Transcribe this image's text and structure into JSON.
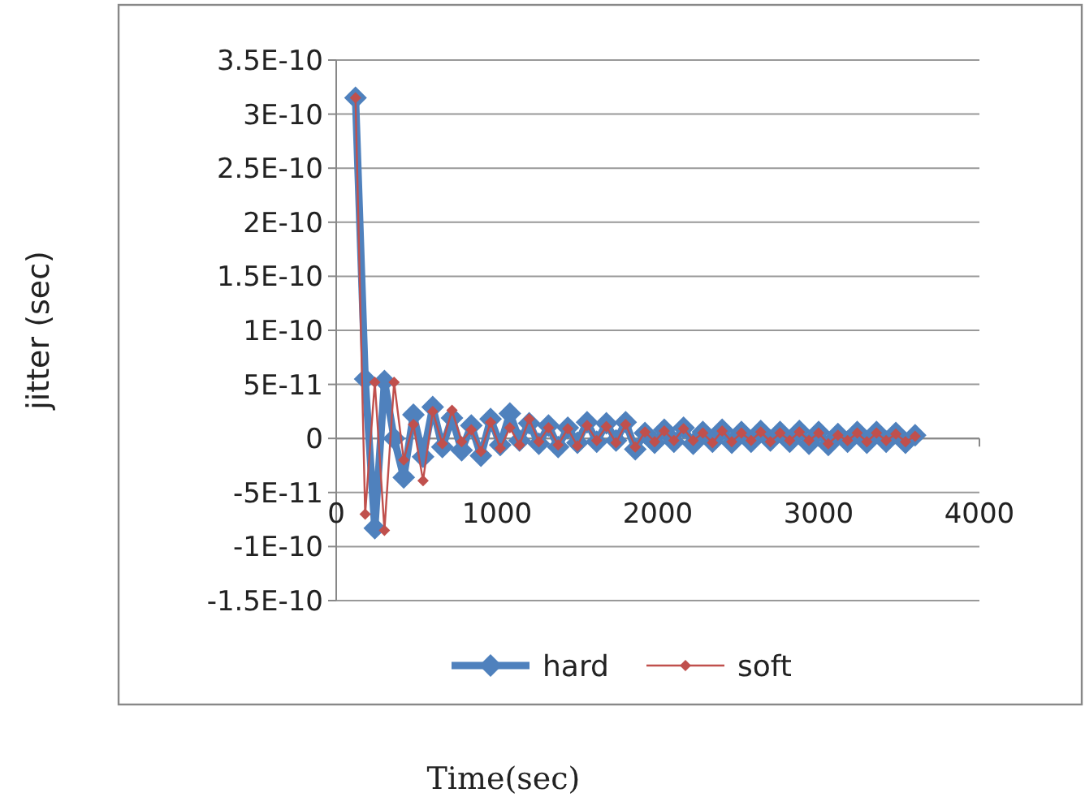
{
  "chart_data": {
    "type": "line",
    "xlabel": "Time(sec)",
    "ylabel": "jitter (sec)",
    "x": [
      120,
      180,
      240,
      300,
      360,
      420,
      480,
      540,
      600,
      660,
      720,
      780,
      840,
      900,
      960,
      1020,
      1080,
      1140,
      1200,
      1260,
      1320,
      1380,
      1440,
      1500,
      1560,
      1620,
      1680,
      1740,
      1800,
      1860,
      1920,
      1980,
      2040,
      2100,
      2160,
      2220,
      2280,
      2340,
      2400,
      2460,
      2520,
      2580,
      2640,
      2700,
      2760,
      2820,
      2880,
      2940,
      3000,
      3060,
      3120,
      3180,
      3240,
      3300,
      3360,
      3420,
      3480,
      3540,
      3600
    ],
    "series": [
      {
        "name": "hard",
        "color": "#4f81bd",
        "marker": "diamond",
        "values": [
          3.15e-10,
          5.5e-11,
          -8.3e-11,
          5.3e-11,
          0,
          -3.6e-11,
          2.2e-11,
          -1.7e-11,
          2.9e-11,
          -8e-12,
          1.9e-11,
          -1.1e-11,
          1.2e-11,
          -1.6e-11,
          1.8e-11,
          -6e-12,
          2.3e-11,
          -2e-12,
          1.4e-11,
          -5e-12,
          1.2e-11,
          -8e-12,
          1e-11,
          -4e-12,
          1.5e-11,
          -3e-12,
          1.4e-11,
          -2e-12,
          1.5e-11,
          -1e-11,
          5e-12,
          -4e-12,
          8e-12,
          -3e-12,
          1e-11,
          -5e-12,
          6e-12,
          -3e-12,
          8e-12,
          -4e-12,
          6e-12,
          -3e-12,
          7e-12,
          -2e-12,
          6e-12,
          -3e-12,
          7e-12,
          -5e-12,
          6e-12,
          -6e-12,
          4e-12,
          -3e-12,
          6e-12,
          -4e-12,
          6e-12,
          -3e-12,
          5e-12,
          -4e-12,
          3e-12
        ]
      },
      {
        "name": "soft",
        "color": "#c0504d",
        "marker": "diamond",
        "values": [
          3.15e-10,
          -7e-11,
          5.2e-11,
          -8.5e-11,
          5.2e-11,
          -2e-11,
          1.3e-11,
          -3.9e-11,
          2.5e-11,
          -5e-12,
          2.6e-11,
          -3e-12,
          8e-12,
          -1.2e-11,
          1.5e-11,
          -9e-12,
          1e-11,
          -6e-12,
          1.8e-11,
          -3e-12,
          1e-11,
          -6e-12,
          9e-12,
          -7e-12,
          1.2e-11,
          -2e-12,
          1.1e-11,
          -4e-12,
          1.3e-11,
          -8e-12,
          6e-12,
          -3e-12,
          7e-12,
          -2e-12,
          9e-12,
          -2e-12,
          5e-12,
          -4e-12,
          7e-12,
          -3e-12,
          5e-12,
          -2e-12,
          6e-12,
          -3e-12,
          5e-12,
          -2e-12,
          6e-12,
          -2e-12,
          5e-12,
          -5e-12,
          3e-12,
          -2e-12,
          5e-12,
          -3e-12,
          5e-12,
          -2e-12,
          4e-12,
          -3e-12,
          2e-12
        ]
      }
    ],
    "xlim": [
      0,
      4000
    ],
    "xticks": [
      0,
      1000,
      2000,
      3000,
      4000
    ],
    "ylim": [
      -1.5e-10,
      3.5e-10
    ],
    "yticks": [
      {
        "value": -1.5e-10,
        "label": "-1.5E-10"
      },
      {
        "value": -1e-10,
        "label": "-1E-10"
      },
      {
        "value": -5e-11,
        "label": "-5E-11"
      },
      0,
      {
        "value": 5e-11,
        "label": "5E-11"
      },
      {
        "value": 1e-10,
        "label": "1E-10"
      },
      {
        "value": 1.5e-10,
        "label": "1.5E-10"
      },
      {
        "value": 2e-10,
        "label": "2E-10"
      },
      {
        "value": 2.5e-10,
        "label": "2.5E-10"
      },
      {
        "value": 3e-10,
        "label": "3E-10"
      },
      {
        "value": 3.5e-10,
        "label": "3.5E-10"
      }
    ],
    "grid": "y",
    "legend": "bottom",
    "line_style": "solid"
  }
}
